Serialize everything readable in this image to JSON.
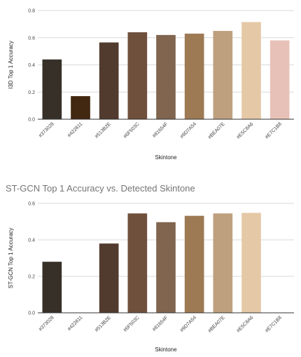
{
  "chart_data": [
    {
      "type": "bar",
      "title": "",
      "xlabel": "Skintone",
      "ylabel": "I3D Top 1 Accuracy",
      "ylim": [
        0,
        0.8
      ],
      "yticks": [
        "0.0",
        "0.2",
        "0.4",
        "0.6",
        "0.8"
      ],
      "categories": [
        "#373028",
        "#422811",
        "#513B2E",
        "#6F503C",
        "#81654F",
        "#9D7A54",
        "#BEA07E",
        "#E5C8A6",
        "#E7C1B8"
      ],
      "values": [
        0.44,
        0.17,
        0.565,
        0.64,
        0.62,
        0.63,
        0.65,
        0.715,
        0.58
      ],
      "colors": [
        "#373028",
        "#422811",
        "#513B2E",
        "#6F503C",
        "#81654F",
        "#9D7A54",
        "#BEA07E",
        "#E5C8A6",
        "#E7C1B8"
      ],
      "grid": true
    },
    {
      "type": "bar",
      "title": "ST-GCN Top 1 Accuracy vs. Detected Skintone",
      "xlabel": "Skintone",
      "ylabel": "ST-GCN Top 1 Accuracy",
      "ylim": [
        0,
        0.6
      ],
      "yticks": [
        "0.0",
        "0.2",
        "0.4",
        "0.6"
      ],
      "categories": [
        "#373028",
        "#422811",
        "#513B2E",
        "#6F503C",
        "#81654F",
        "#9D7A54",
        "#BEA07E",
        "#E5C8A6",
        "#E7C1B8"
      ],
      "values": [
        0.28,
        0,
        0.38,
        0.545,
        0.497,
        0.532,
        0.545,
        0.548,
        0
      ],
      "colors": [
        "#373028",
        "#422811",
        "#513B2E",
        "#6F503C",
        "#81654F",
        "#9D7A54",
        "#BEA07E",
        "#E5C8A6",
        "#E7C1B8"
      ],
      "grid": true
    }
  ]
}
